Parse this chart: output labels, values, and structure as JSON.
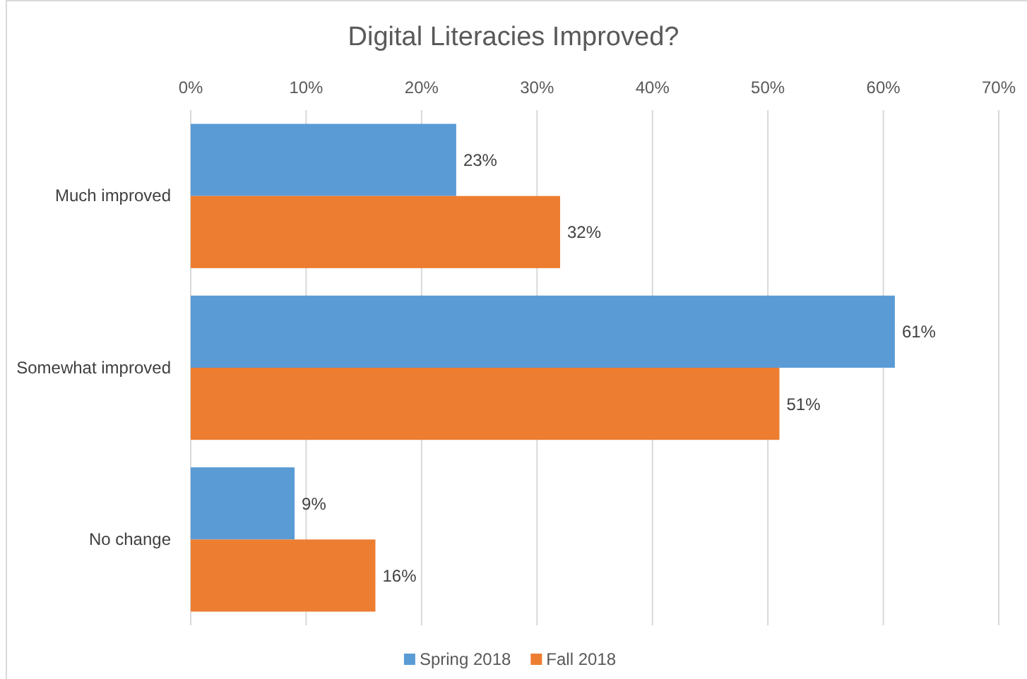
{
  "chart_data": {
    "type": "bar",
    "orientation": "horizontal",
    "title": "Digital Literacies Improved?",
    "categories": [
      "Much improved",
      "Somewhat improved",
      "No change"
    ],
    "series": [
      {
        "name": "Spring 2018",
        "color": "#5b9bd5",
        "values": [
          23,
          61,
          9
        ]
      },
      {
        "name": "Fall 2018",
        "color": "#ed7d31",
        "values": [
          32,
          51,
          16
        ]
      }
    ],
    "xlim": [
      0,
      70
    ],
    "xticks": [
      {
        "value": 0,
        "label": "0%"
      },
      {
        "value": 10,
        "label": "10%"
      },
      {
        "value": 20,
        "label": "20%"
      },
      {
        "value": 30,
        "label": "30%"
      },
      {
        "value": 40,
        "label": "40%"
      },
      {
        "value": 50,
        "label": "50%"
      },
      {
        "value": 60,
        "label": "60%"
      },
      {
        "value": 70,
        "label": "70%"
      }
    ],
    "value_labels": [
      [
        "23%",
        "61%",
        "9%"
      ],
      [
        "32%",
        "51%",
        "16%"
      ]
    ],
    "grid": "x",
    "legend": "bottom"
  }
}
